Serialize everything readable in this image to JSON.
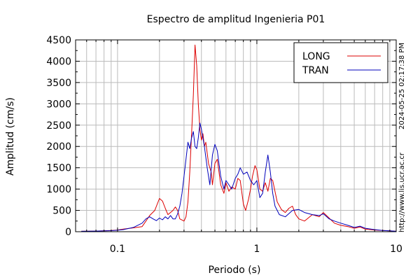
{
  "chart_data": {
    "type": "line",
    "title": "Espectro de amplitud Ingenieria P01",
    "xlabel": "Periodo (s)",
    "ylabel": "Amplitud (cm/s)",
    "x_scale": "log",
    "xlim": [
      0.05,
      10
    ],
    "ylim": [
      0,
      4500
    ],
    "x_ticks": [
      0.1,
      1,
      10
    ],
    "x_tick_labels": [
      "0.1",
      "1",
      "10"
    ],
    "y_ticks": [
      0,
      500,
      1000,
      1500,
      2000,
      2500,
      3000,
      3500,
      4000,
      4500
    ],
    "y_tick_labels": [
      "0",
      "500",
      "1000",
      "1500",
      "2000",
      "2500",
      "3000",
      "3500",
      "4000",
      "4500"
    ],
    "grid": true,
    "legend_position": "top-right",
    "series": [
      {
        "name": "LONG",
        "color": "#dd0000",
        "points": [
          [
            0.055,
            10
          ],
          [
            0.07,
            15
          ],
          [
            0.09,
            30
          ],
          [
            0.1,
            40
          ],
          [
            0.11,
            60
          ],
          [
            0.13,
            90
          ],
          [
            0.15,
            120
          ],
          [
            0.16,
            250
          ],
          [
            0.17,
            380
          ],
          [
            0.185,
            500
          ],
          [
            0.2,
            780
          ],
          [
            0.21,
            720
          ],
          [
            0.22,
            550
          ],
          [
            0.23,
            400
          ],
          [
            0.25,
            500
          ],
          [
            0.26,
            580
          ],
          [
            0.27,
            500
          ],
          [
            0.28,
            300
          ],
          [
            0.3,
            250
          ],
          [
            0.31,
            350
          ],
          [
            0.32,
            700
          ],
          [
            0.33,
            1400
          ],
          [
            0.34,
            2300
          ],
          [
            0.35,
            3200
          ],
          [
            0.36,
            4380
          ],
          [
            0.37,
            3900
          ],
          [
            0.38,
            3000
          ],
          [
            0.39,
            2400
          ],
          [
            0.4,
            2150
          ],
          [
            0.41,
            2300
          ],
          [
            0.42,
            2000
          ],
          [
            0.43,
            2100
          ],
          [
            0.45,
            1600
          ],
          [
            0.47,
            1400
          ],
          [
            0.48,
            1100
          ],
          [
            0.5,
            1600
          ],
          [
            0.52,
            1700
          ],
          [
            0.55,
            1100
          ],
          [
            0.58,
            900
          ],
          [
            0.6,
            1150
          ],
          [
            0.63,
            950
          ],
          [
            0.66,
            1050
          ],
          [
            0.7,
            1000
          ],
          [
            0.73,
            1250
          ],
          [
            0.76,
            1200
          ],
          [
            0.8,
            650
          ],
          [
            0.83,
            500
          ],
          [
            0.87,
            750
          ],
          [
            0.9,
            1000
          ],
          [
            0.93,
            1300
          ],
          [
            0.97,
            1550
          ],
          [
            1.0,
            1450
          ],
          [
            1.05,
            1000
          ],
          [
            1.1,
            950
          ],
          [
            1.15,
            1150
          ],
          [
            1.2,
            950
          ],
          [
            1.25,
            1250
          ],
          [
            1.3,
            1200
          ],
          [
            1.4,
            700
          ],
          [
            1.5,
            520
          ],
          [
            1.6,
            450
          ],
          [
            1.7,
            550
          ],
          [
            1.8,
            600
          ],
          [
            1.9,
            400
          ],
          [
            2.0,
            300
          ],
          [
            2.2,
            250
          ],
          [
            2.5,
            400
          ],
          [
            2.8,
            350
          ],
          [
            3.0,
            450
          ],
          [
            3.3,
            320
          ],
          [
            3.6,
            200
          ],
          [
            4.0,
            150
          ],
          [
            4.5,
            120
          ],
          [
            5.0,
            80
          ],
          [
            5.5,
            110
          ],
          [
            6.0,
            60
          ],
          [
            7.0,
            40
          ],
          [
            8.0,
            30
          ],
          [
            9.0,
            20
          ],
          [
            10.0,
            10
          ]
        ]
      },
      {
        "name": "TRAN",
        "color": "#0000bb",
        "points": [
          [
            0.055,
            10
          ],
          [
            0.07,
            15
          ],
          [
            0.09,
            25
          ],
          [
            0.1,
            35
          ],
          [
            0.11,
            50
          ],
          [
            0.13,
            100
          ],
          [
            0.15,
            200
          ],
          [
            0.16,
            300
          ],
          [
            0.17,
            350
          ],
          [
            0.18,
            300
          ],
          [
            0.19,
            260
          ],
          [
            0.2,
            320
          ],
          [
            0.21,
            280
          ],
          [
            0.22,
            350
          ],
          [
            0.23,
            300
          ],
          [
            0.24,
            380
          ],
          [
            0.25,
            300
          ],
          [
            0.26,
            300
          ],
          [
            0.27,
            420
          ],
          [
            0.28,
            600
          ],
          [
            0.29,
            900
          ],
          [
            0.3,
            1300
          ],
          [
            0.31,
            1700
          ],
          [
            0.32,
            2100
          ],
          [
            0.33,
            1950
          ],
          [
            0.34,
            2200
          ],
          [
            0.35,
            2350
          ],
          [
            0.36,
            2000
          ],
          [
            0.37,
            1950
          ],
          [
            0.38,
            2200
          ],
          [
            0.39,
            2550
          ],
          [
            0.4,
            2400
          ],
          [
            0.42,
            2000
          ],
          [
            0.44,
            1500
          ],
          [
            0.46,
            1100
          ],
          [
            0.48,
            1800
          ],
          [
            0.5,
            2050
          ],
          [
            0.52,
            1900
          ],
          [
            0.55,
            1300
          ],
          [
            0.58,
            1000
          ],
          [
            0.6,
            1200
          ],
          [
            0.63,
            1100
          ],
          [
            0.66,
            1000
          ],
          [
            0.7,
            1250
          ],
          [
            0.73,
            1350
          ],
          [
            0.76,
            1500
          ],
          [
            0.8,
            1350
          ],
          [
            0.85,
            1400
          ],
          [
            0.9,
            1200
          ],
          [
            0.95,
            1100
          ],
          [
            1.0,
            1200
          ],
          [
            1.05,
            800
          ],
          [
            1.1,
            900
          ],
          [
            1.15,
            1400
          ],
          [
            1.2,
            1800
          ],
          [
            1.25,
            1400
          ],
          [
            1.3,
            900
          ],
          [
            1.35,
            600
          ],
          [
            1.45,
            400
          ],
          [
            1.6,
            350
          ],
          [
            1.8,
            500
          ],
          [
            2.0,
            520
          ],
          [
            2.2,
            450
          ],
          [
            2.5,
            400
          ],
          [
            2.8,
            380
          ],
          [
            3.0,
            420
          ],
          [
            3.3,
            300
          ],
          [
            3.6,
            250
          ],
          [
            4.0,
            200
          ],
          [
            4.5,
            150
          ],
          [
            5.0,
            100
          ],
          [
            5.5,
            130
          ],
          [
            6.0,
            80
          ],
          [
            7.0,
            50
          ],
          [
            8.0,
            30
          ],
          [
            9.0,
            20
          ],
          [
            10.0,
            10
          ]
        ]
      }
    ]
  },
  "side_text": {
    "timestamp": "2024-05-25 02:17:38 PM",
    "url": "http://www.lis.ucr.ac.cr"
  }
}
